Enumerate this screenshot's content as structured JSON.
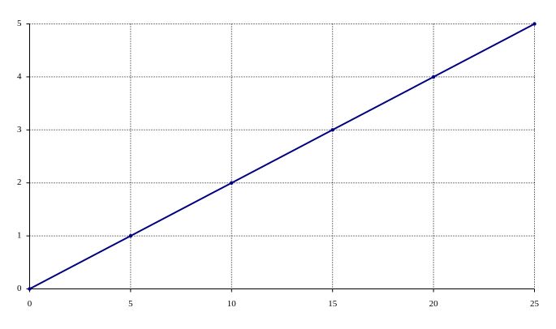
{
  "chart_data": {
    "type": "line",
    "x": [
      0,
      5,
      10,
      15,
      20,
      25
    ],
    "values": [
      0,
      1,
      2,
      3,
      4,
      5
    ],
    "color": "#000080",
    "markers": true,
    "xlim": [
      0,
      25
    ],
    "xticks": [
      0,
      5,
      10,
      15,
      20,
      25
    ],
    "ylim": [
      0,
      5
    ],
    "yticks": [
      0,
      1,
      2,
      3,
      4,
      5
    ],
    "grid": true
  }
}
